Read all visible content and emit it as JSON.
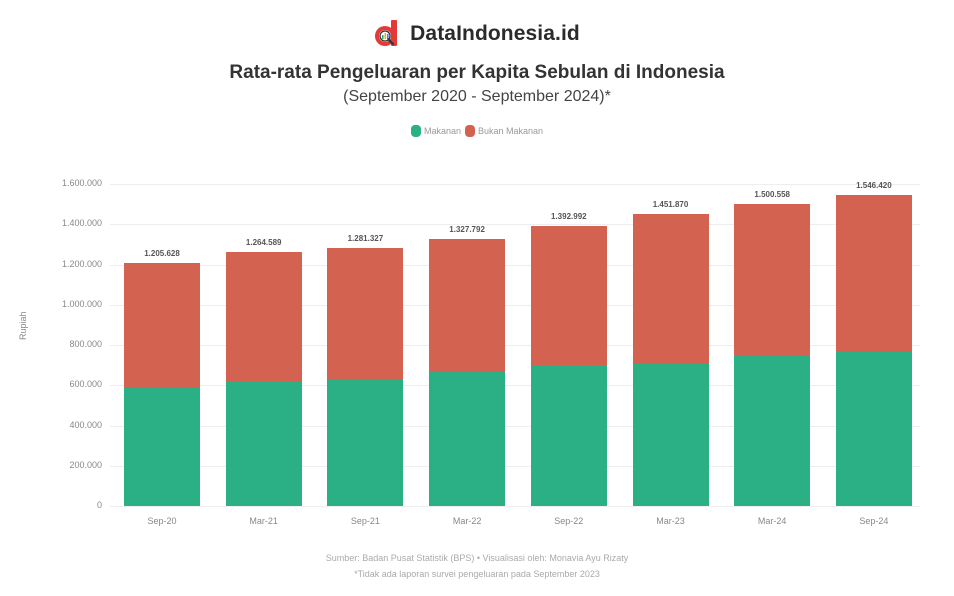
{
  "brand": {
    "name": "DataIndonesia.id",
    "logo_icon": "data-indonesia-logo-icon",
    "accent": "#e53935"
  },
  "header": {
    "title": "Rata-rata Pengeluaran per Kapita Sebulan di Indonesia",
    "subtitle": "(September 2020 - September 2024)*"
  },
  "legend": [
    {
      "label": "Makanan",
      "color": "#2bb086"
    },
    {
      "label": "Bukan Makanan",
      "color": "#d46251"
    }
  ],
  "axis": {
    "ylabel": "Rupiah",
    "yticks": [
      "0",
      "200.000",
      "400.000",
      "600.000",
      "800.000",
      "1.000.000",
      "1.200.000",
      "1.400.000",
      "1.600.000"
    ]
  },
  "footer": {
    "source": "Sumber: Badan Pusat Statistik (BPS) • Visualisasi oleh: Monavia Ayu Rizaty",
    "note": "*Tidak ada laporan survei pengeluaran pada September 2023"
  },
  "chart_data": {
    "type": "bar",
    "stacked": true,
    "title": "Rata-rata Pengeluaran per Kapita Sebulan di Indonesia",
    "subtitle": "(September 2020 - September 2024)*",
    "xlabel": "",
    "ylabel": "Rupiah",
    "ylim": [
      0,
      1600000
    ],
    "grid": true,
    "legend_position": "top",
    "categories": [
      "Sep-20",
      "Mar-21",
      "Sep-21",
      "Mar-22",
      "Sep-22",
      "Mar-23",
      "Mar-24",
      "Sep-24"
    ],
    "series": [
      {
        "name": "Makanan",
        "color": "#2bb086",
        "values": [
          586000,
          620000,
          630000,
          665000,
          700000,
          710000,
          749000,
          764000
        ]
      },
      {
        "name": "Bukan Makanan",
        "color": "#d46251",
        "values": [
          619628,
          644589,
          651327,
          662792,
          692992,
          741870,
          751558,
          782420
        ]
      }
    ],
    "totals": [
      1205628,
      1264589,
      1281327,
      1327792,
      1392992,
      1451870,
      1500558,
      1546420
    ],
    "total_labels": [
      "1.205.628",
      "1.264.589",
      "1.281.327",
      "1.327.792",
      "1.392.992",
      "1.451.870",
      "1.500.558",
      "1.546.420"
    ]
  }
}
